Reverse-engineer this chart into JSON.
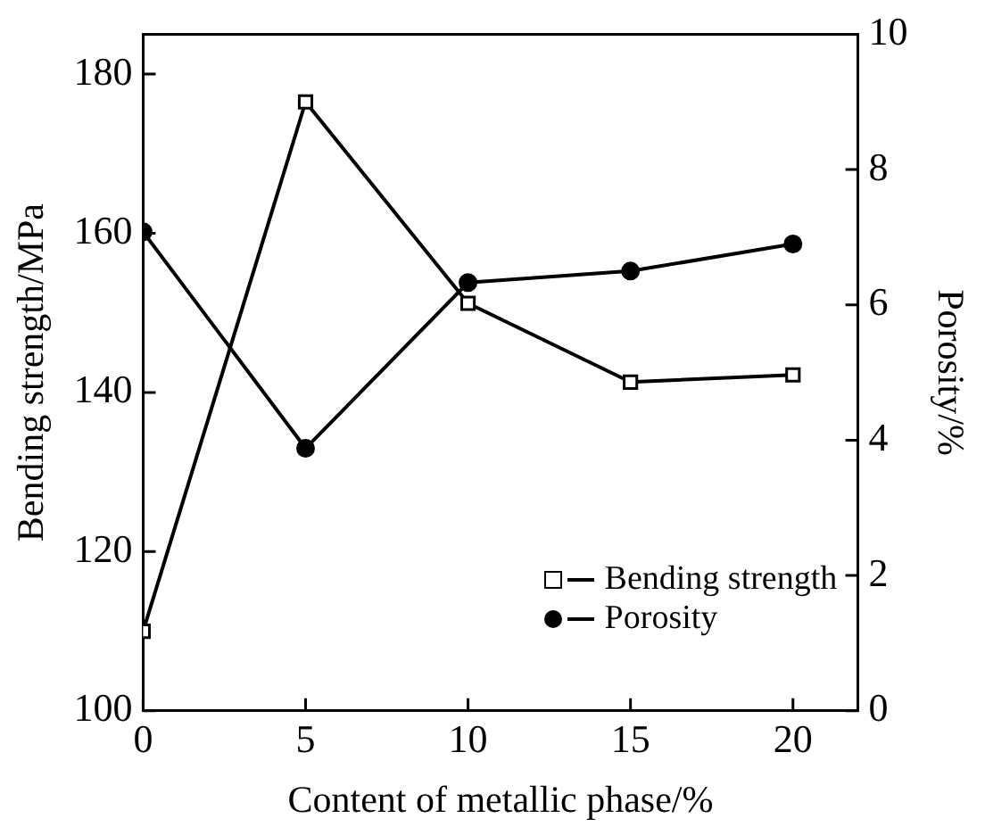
{
  "chart_data": {
    "type": "line",
    "xlabel": "Content of metallic phase/%",
    "ylabel": "Bending strength/MPa",
    "y2label": "Porosity/%",
    "x": [
      0,
      5,
      10,
      15,
      20
    ],
    "xlim": [
      0,
      22
    ],
    "xticks": [
      0,
      5,
      10,
      15,
      20
    ],
    "ylim": [
      100,
      185
    ],
    "yticks": [
      100,
      120,
      140,
      160,
      180
    ],
    "y2lim": [
      0,
      10
    ],
    "y2ticks": [
      0,
      2,
      4,
      6,
      8,
      10
    ],
    "grid": false,
    "legend": "bottom right",
    "series": [
      {
        "name": "Bending strength",
        "color": "#000000",
        "marker": "square",
        "values": [
          110,
          176.5,
          151.2,
          141.3,
          142.2
        ]
      },
      {
        "name": "Porosity",
        "color": "#000000",
        "marker": "circle",
        "axis": "y2",
        "values": [
          7.08,
          3.88,
          6.33,
          6.5,
          6.9
        ]
      }
    ]
  }
}
